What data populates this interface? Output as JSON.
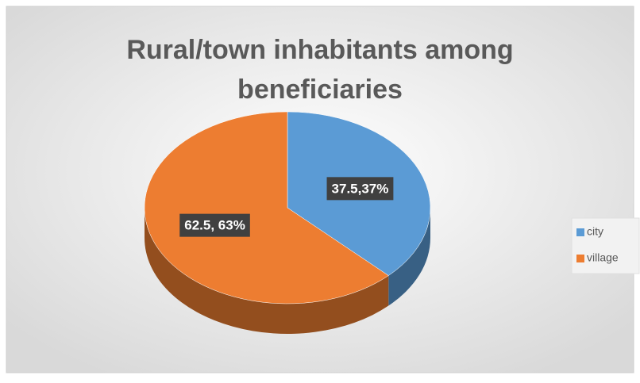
{
  "chart_data": {
    "type": "pie",
    "title": "Rural/town inhabitants among beneficiaries",
    "categories": [
      "city",
      "village"
    ],
    "values": [
      37.5,
      62.5
    ],
    "value_labels": [
      "37.5,37%",
      "62.5, 63%"
    ],
    "colors": [
      "#5b9bd5",
      "#ed7d31"
    ],
    "legend": "right"
  }
}
